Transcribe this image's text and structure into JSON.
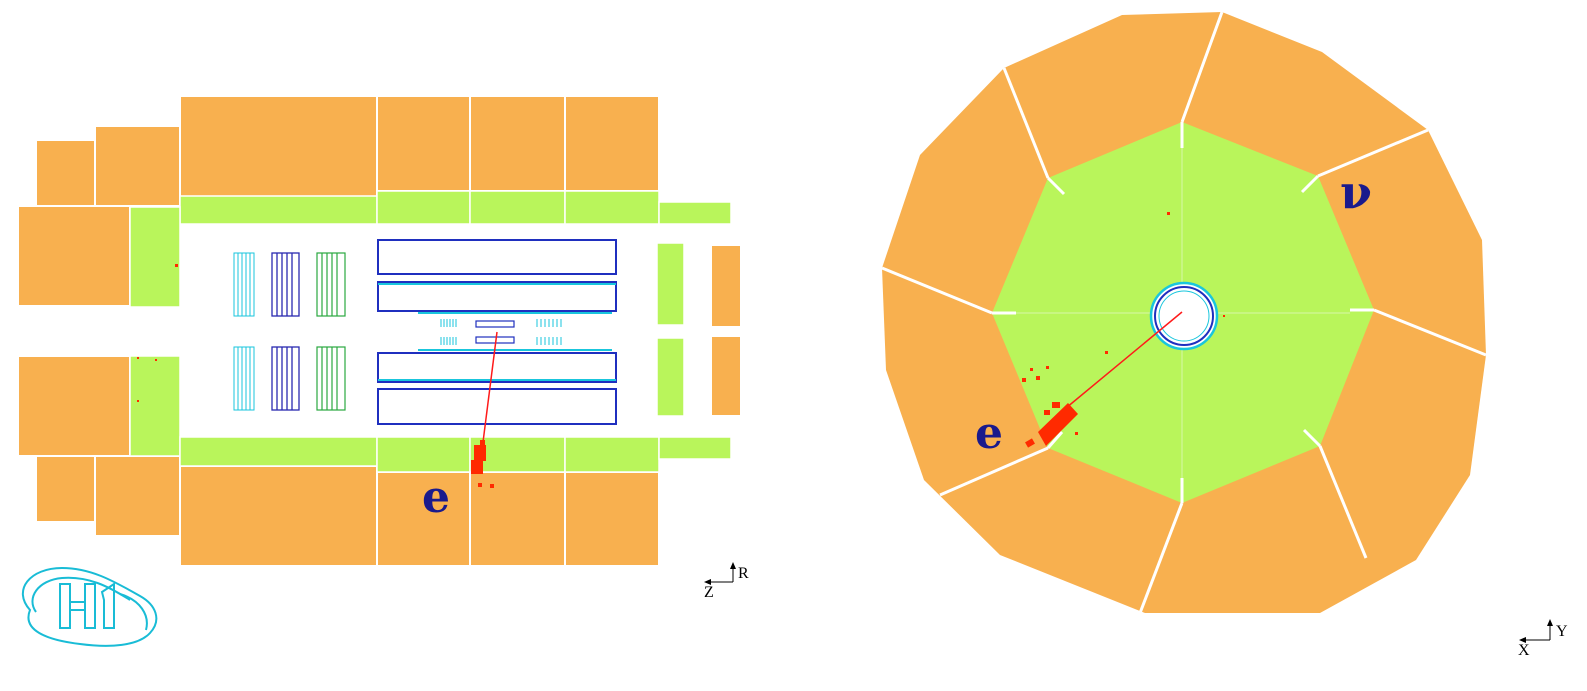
{
  "colors": {
    "calo_outer": "#f8b04f",
    "calo_inner": "#b9f55b",
    "tracker_blue": "#1f2fbf",
    "tracker_cyan": "#19c6dd",
    "tracker_green": "#2aa840",
    "deposit_red": "#ff2a00",
    "track_red": "#ff1a1a",
    "label_blue": "#1a1a8c",
    "logo_cyan": "#19bcd6"
  },
  "side_view": {
    "label_electron": "e",
    "axis_z_label": "Z",
    "axis_r_label": "R"
  },
  "front_view": {
    "label_electron": "e",
    "label_neutrino": "ν",
    "axis_x_label": "X",
    "axis_y_label": "Y"
  },
  "logo": {
    "text": "H1",
    "icon": "h1-logo-icon"
  }
}
